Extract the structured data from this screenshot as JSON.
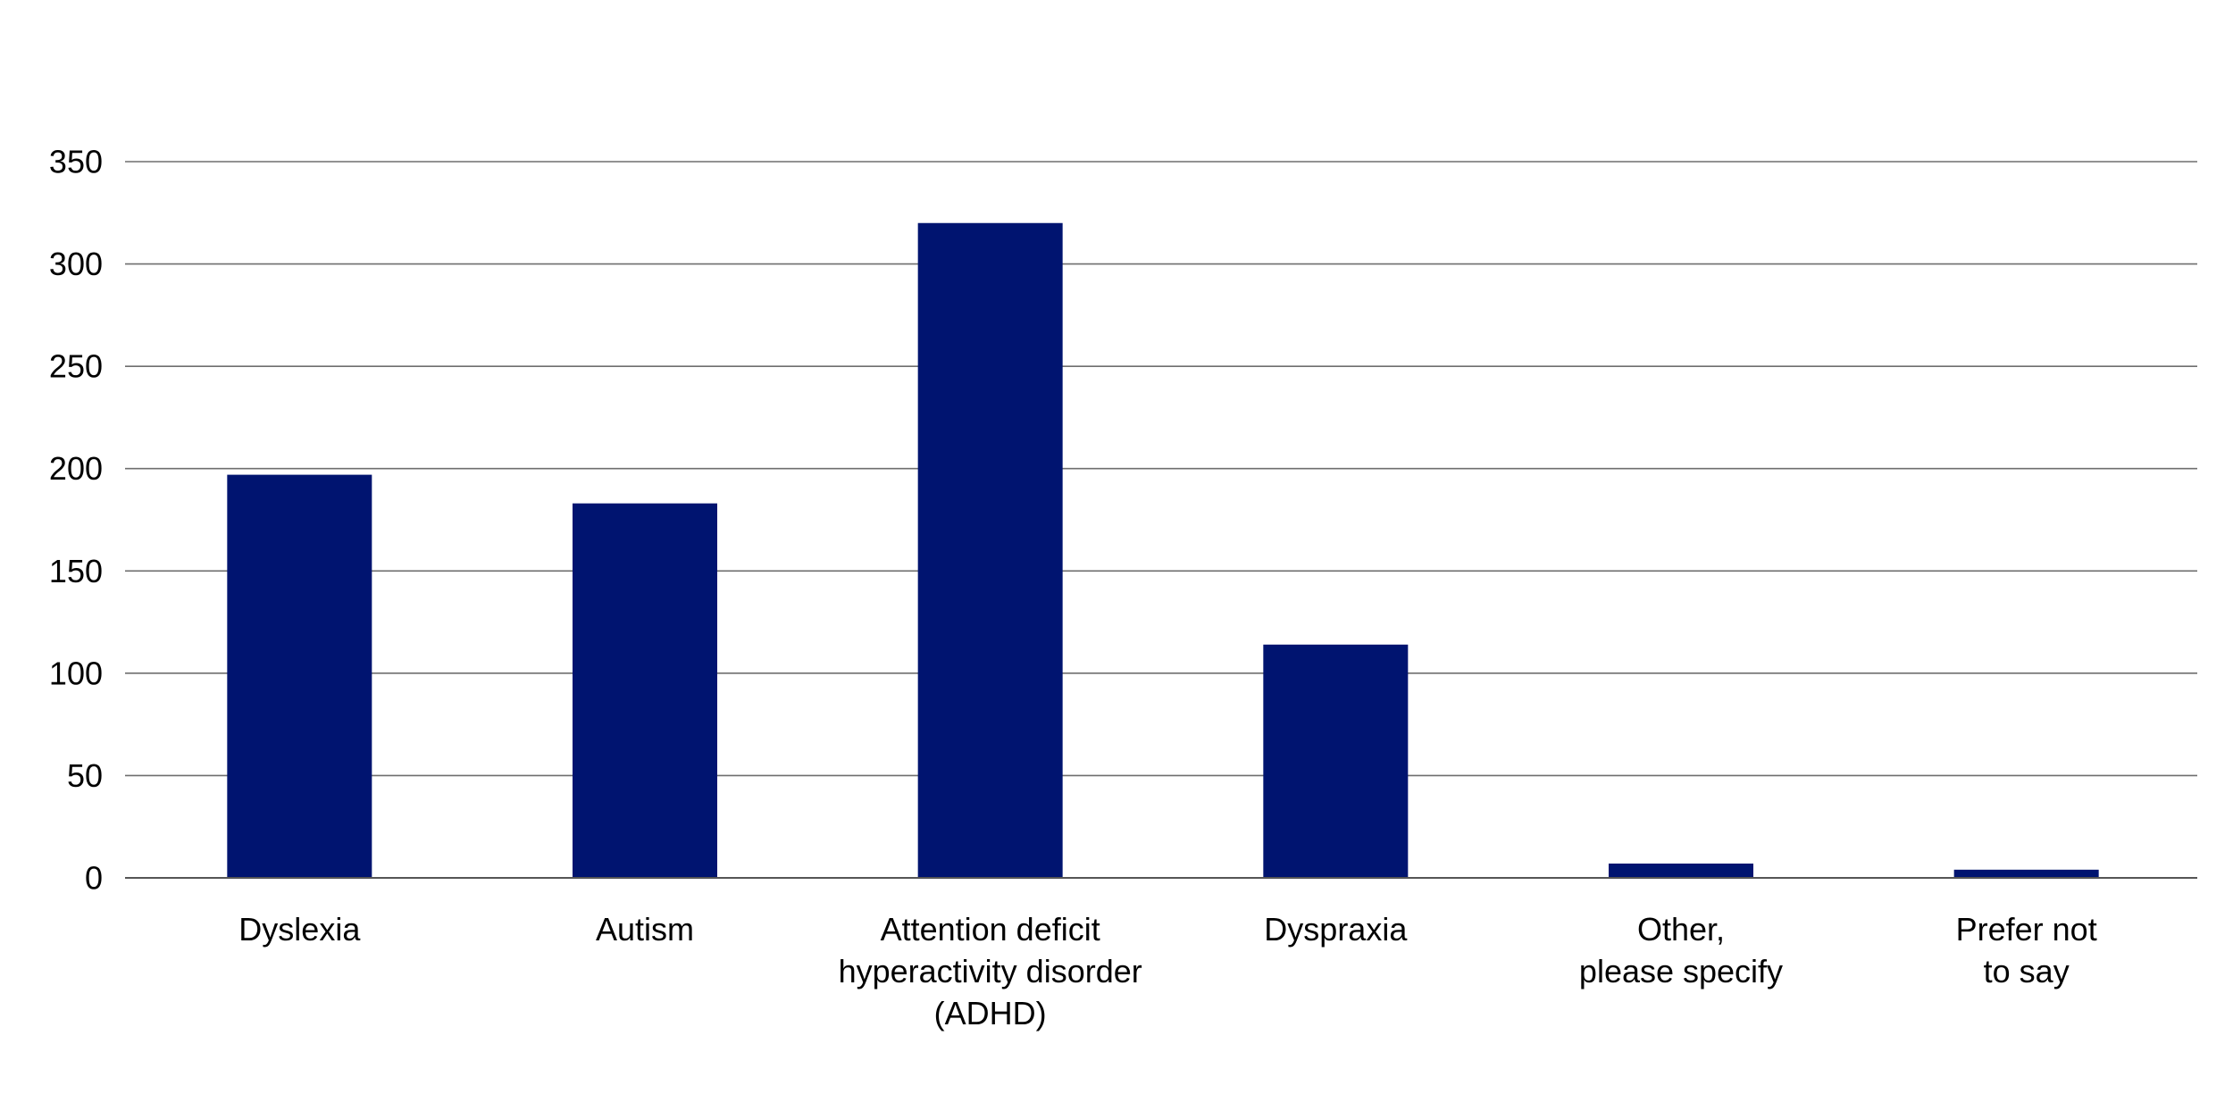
{
  "chart_data": {
    "type": "bar",
    "title": "",
    "xlabel": "",
    "ylabel": "",
    "categories": [
      [
        "Dyslexia"
      ],
      [
        "Autism"
      ],
      [
        "Attention deficit",
        "hyperactivity disorder",
        "(ADHD)"
      ],
      [
        "Dyspraxia"
      ],
      [
        "Other,",
        "please specify"
      ],
      [
        "Prefer not",
        "to say"
      ]
    ],
    "values": [
      197,
      183,
      320,
      114,
      7,
      4
    ],
    "ylim": [
      0,
      350
    ],
    "yticks": [
      0,
      50,
      100,
      150,
      200,
      250,
      300,
      350
    ],
    "grid": true,
    "legend": "none",
    "bar_color": "#001470"
  }
}
